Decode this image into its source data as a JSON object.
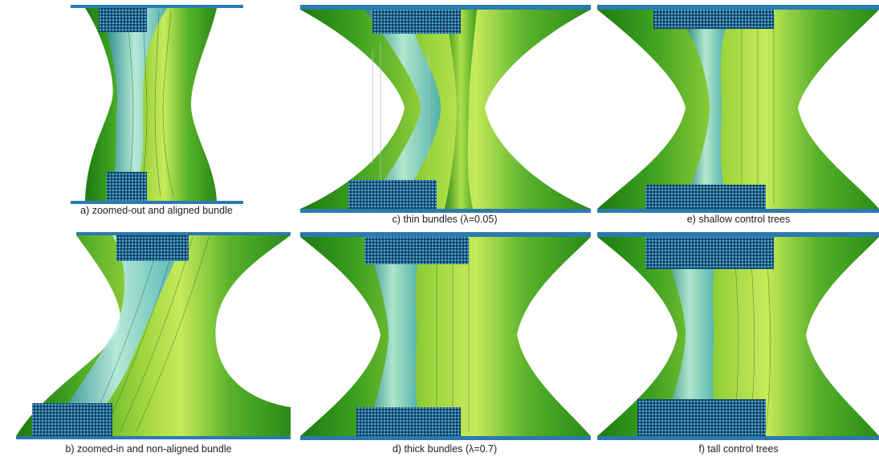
{
  "figure": {
    "panels": [
      {
        "id": "a",
        "caption": "a) zoomed-out and aligned bundle"
      },
      {
        "id": "b",
        "caption": "b) zoomed-in and non-aligned bundle"
      },
      {
        "id": "c",
        "caption": "c) thin bundles (λ=0.05)"
      },
      {
        "id": "d",
        "caption": "d) thick bundles (λ=0.7)"
      },
      {
        "id": "e",
        "caption": "e) shallow control trees"
      },
      {
        "id": "f",
        "caption": "f) tall control trees"
      }
    ],
    "colors": {
      "bundle_green_dark": "#2f8f1c",
      "bundle_green_light": "#b9e24a",
      "bundle_cyan": "#5fc6d9",
      "tree_blue": "#1f5e86",
      "axis_bar": "#2a7ab0"
    }
  }
}
